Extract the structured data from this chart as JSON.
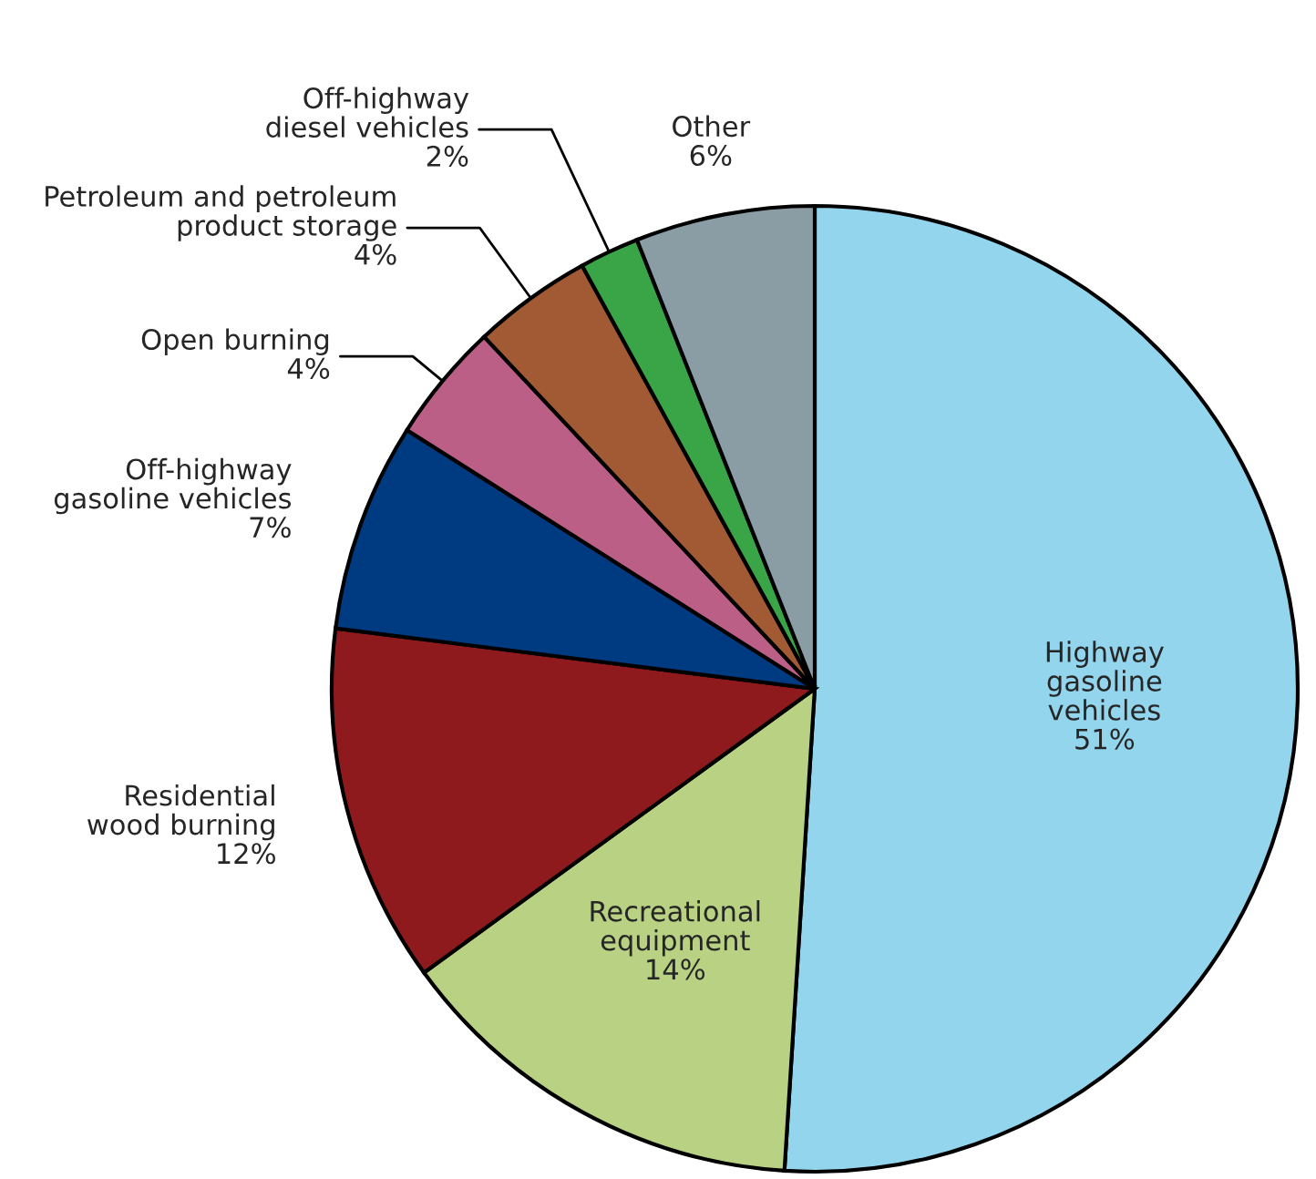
{
  "chart_data": {
    "type": "pie",
    "categories": [
      "Highway\ngasoline\nvehicles",
      "Recreational\nequipment",
      "Residential\nwood burning",
      "Off-highway\ngasoline vehicles",
      "Open burning",
      "Petroleum and petroleum\nproduct storage",
      "Off-highway\ndiesel vehicles",
      "Other"
    ],
    "values": [
      51,
      14,
      12,
      7,
      4,
      4,
      2,
      6
    ],
    "value_labels": [
      "51%",
      "14%",
      "12%",
      "7%",
      "4%",
      "4%",
      "2%",
      "6%"
    ],
    "colors": [
      "#94d5ee",
      "#b8d183",
      "#8e1a1e",
      "#003a80",
      "#bc5f86",
      "#a15a33",
      "#3aa547",
      "#8a9da5"
    ]
  }
}
